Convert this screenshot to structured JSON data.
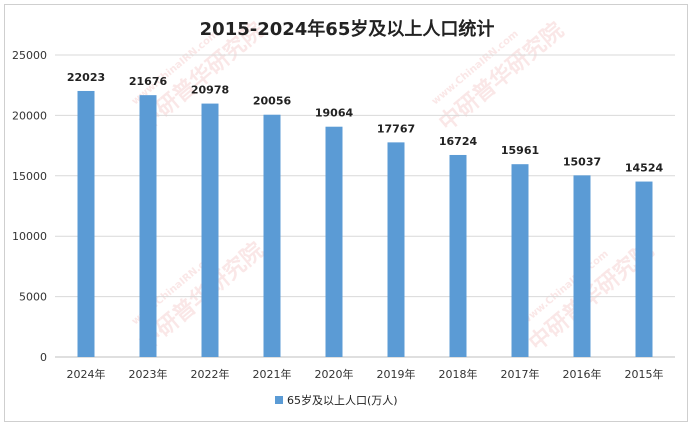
{
  "chart_data": {
    "type": "bar",
    "title": "2015-2024年65岁及以上人口统计",
    "categories": [
      "2024年",
      "2023年",
      "2022年",
      "2021年",
      "2020年",
      "2019年",
      "2018年",
      "2017年",
      "2016年",
      "2015年"
    ],
    "series": [
      {
        "name": "65岁及以上人口(万人)",
        "values": [
          22023,
          21676,
          20978,
          20056,
          19064,
          17767,
          16724,
          15961,
          15037,
          14524
        ],
        "color": "#5b9bd5"
      }
    ],
    "ylim": [
      0,
      25000
    ],
    "yticks": [
      0,
      5000,
      10000,
      15000,
      20000,
      25000
    ],
    "grid": true,
    "legend_position": "bottom",
    "watermark": [
      "www.ChinaIRN.com",
      "中研普华研究院"
    ]
  }
}
